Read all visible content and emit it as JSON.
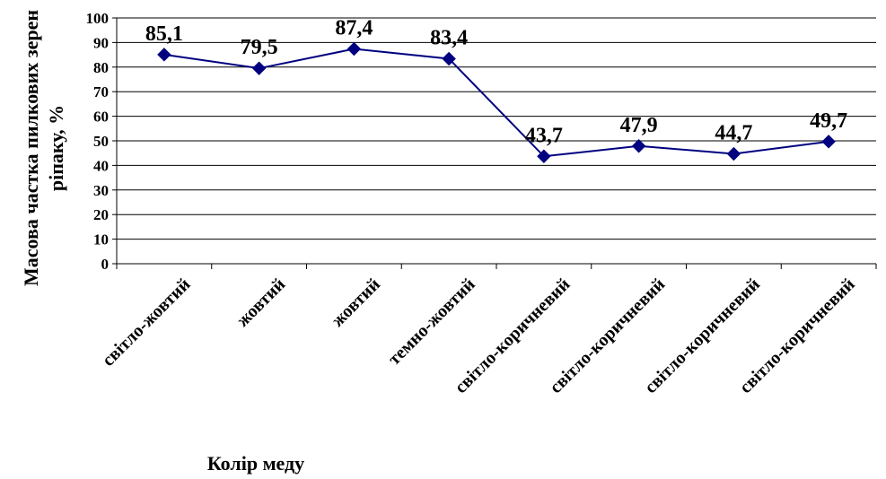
{
  "chart_data": {
    "type": "line",
    "title": "",
    "xlabel": "Колір меду",
    "ylabel_lines": [
      "Масова частка пилкових зерен",
      "ріпаку, %"
    ],
    "ylim": [
      0,
      100
    ],
    "yticks": [
      0,
      10,
      20,
      30,
      40,
      50,
      60,
      70,
      80,
      90,
      100
    ],
    "grid": true,
    "legend": "none",
    "categories": [
      "світло-жовтий",
      "жовтий",
      "жовтий",
      "темно-жовтий",
      "світло-коричневий",
      "світло-коричневий",
      "світло-коричневий",
      "світло-коричневий"
    ],
    "series": [
      {
        "values": [
          85.1,
          79.5,
          87.4,
          83.4,
          43.7,
          47.9,
          44.7,
          49.7
        ],
        "data_labels": [
          "85,1",
          "79,5",
          "87,4",
          "83,4",
          "43,7",
          "47,9",
          "44,7",
          "49,7"
        ],
        "color": "#000080",
        "marker": "diamond"
      }
    ]
  }
}
